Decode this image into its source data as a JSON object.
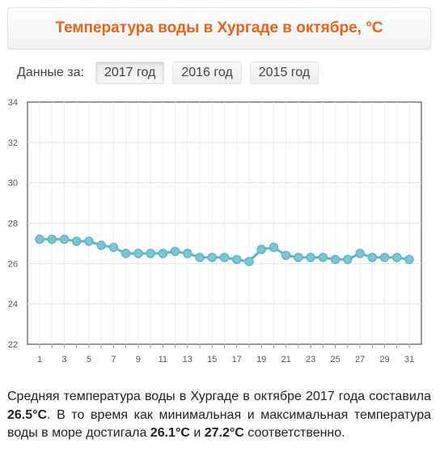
{
  "header": {
    "title": "Температура воды в Хургаде в октябре, °C"
  },
  "year_selector": {
    "label": "Данные за:",
    "options": [
      "2017 год",
      "2016 год",
      "2015 год"
    ],
    "selected": "2017 год"
  },
  "chart_data": {
    "type": "line",
    "x": [
      1,
      2,
      3,
      4,
      5,
      6,
      7,
      8,
      9,
      10,
      11,
      12,
      13,
      14,
      15,
      16,
      17,
      18,
      19,
      20,
      21,
      22,
      23,
      24,
      25,
      26,
      27,
      28,
      29,
      30,
      31
    ],
    "x_tick_labels": [
      "1",
      "3",
      "5",
      "7",
      "9",
      "11",
      "13",
      "15",
      "17",
      "19",
      "21",
      "23",
      "25",
      "27",
      "29",
      "31"
    ],
    "y_tick_labels": [
      "22",
      "24",
      "26",
      "28",
      "30",
      "32",
      "34"
    ],
    "series": [
      {
        "values": [
          27.2,
          27.2,
          27.2,
          27.1,
          27.1,
          26.9,
          26.8,
          26.5,
          26.5,
          26.5,
          26.5,
          26.6,
          26.5,
          26.3,
          26.3,
          26.3,
          26.2,
          26.1,
          26.7,
          26.8,
          26.4,
          26.3,
          26.3,
          26.3,
          26.2,
          26.2,
          26.5,
          26.3,
          26.3,
          26.3,
          26.2
        ]
      }
    ],
    "xlim": [
      1,
      31
    ],
    "ylim": [
      22,
      34
    ],
    "grid": true,
    "series_color": "#5bb7c9",
    "marker_fill": "#7ec4d6"
  },
  "description": {
    "p1": "Средняя температура воды в Хургаде в октябре 2017 года составила ",
    "avg": "26.5°C",
    "p2": ". В то время как минимальная и максимальная температура воды в море достигала ",
    "min": "26.1°C",
    "p3": " и ",
    "max": "27.2°C",
    "p4": " соответственно."
  }
}
